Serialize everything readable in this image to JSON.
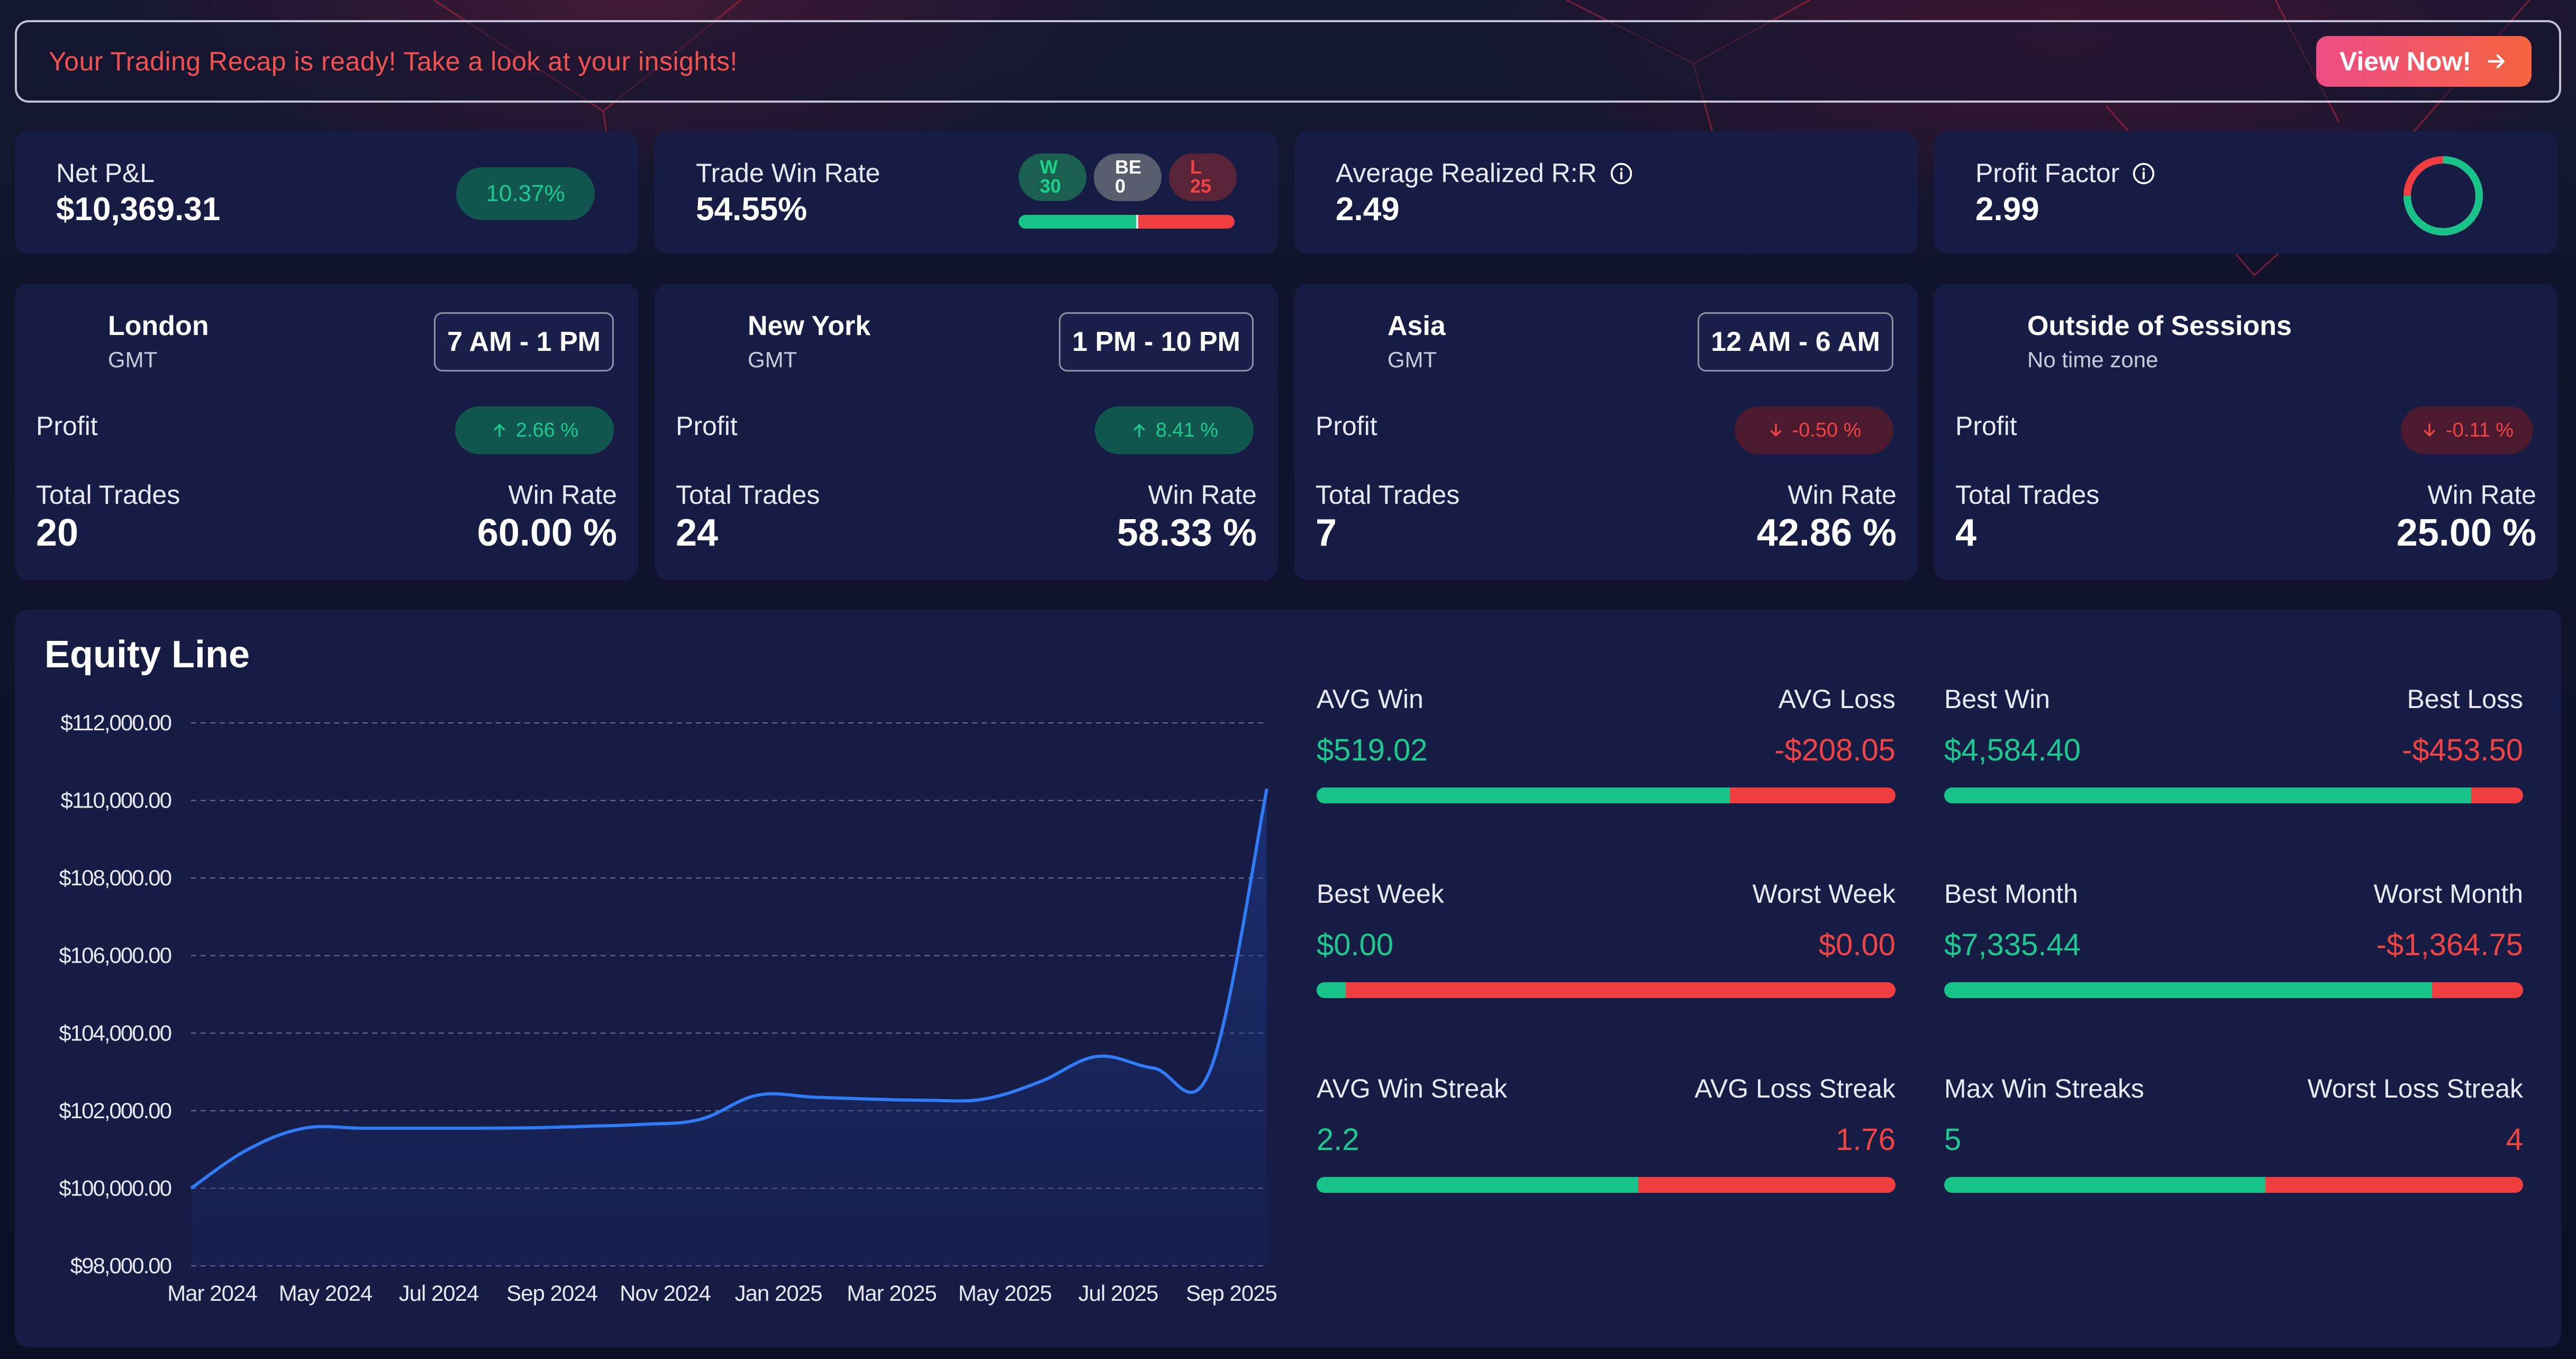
{
  "banner": {
    "text": "Your Trading Recap is ready! Take a look at your insights!",
    "button_label": "View Now!"
  },
  "summary": {
    "net_pnl": {
      "label": "Net P&L",
      "value": "$10,369.31",
      "badge": "10.37%"
    },
    "trade_win_rate": {
      "label": "Trade Win Rate",
      "value": "54.55%",
      "wins_label": "W",
      "wins": "30",
      "breakeven_label": "BE",
      "breakeven": "0",
      "losses_label": "L",
      "losses": "25",
      "win_share": 0.545,
      "be_share": 0.01,
      "loss_share": 0.445
    },
    "avg_rr": {
      "label": "Average Realized R:R",
      "value": "2.49"
    },
    "profit_factor": {
      "label": "Profit Factor",
      "value": "2.99",
      "ring_share": 0.75
    }
  },
  "sessions": [
    {
      "name": "London",
      "timezone": "GMT",
      "time": "7 AM - 1 PM",
      "profit_label": "Profit",
      "profit": "2.66 %",
      "direction": "up",
      "total_trades_label": "Total Trades",
      "total_trades": "20",
      "win_rate_label": "Win Rate",
      "win_rate": "60.00 %"
    },
    {
      "name": "New York",
      "timezone": "GMT",
      "time": "1 PM - 10 PM",
      "profit_label": "Profit",
      "profit": "8.41 %",
      "direction": "up",
      "total_trades_label": "Total Trades",
      "total_trades": "24",
      "win_rate_label": "Win Rate",
      "win_rate": "58.33 %"
    },
    {
      "name": "Asia",
      "timezone": "GMT",
      "time": "12 AM - 6 AM",
      "profit_label": "Profit",
      "profit": "-0.50 %",
      "direction": "down",
      "total_trades_label": "Total Trades",
      "total_trades": "7",
      "win_rate_label": "Win Rate",
      "win_rate": "42.86 %"
    },
    {
      "name": "Outside of Sessions",
      "timezone": "No time zone",
      "time": "",
      "profit_label": "Profit",
      "profit": "-0.11 %",
      "direction": "down",
      "total_trades_label": "Total Trades",
      "total_trades": "4",
      "win_rate_label": "Win Rate",
      "win_rate": "25.00 %"
    }
  ],
  "equity": {
    "title": "Equity Line"
  },
  "stats": [
    {
      "left_label": "AVG Win",
      "left_value": "$519.02",
      "right_label": "AVG Loss",
      "right_value": "-$208.05",
      "green_share": 0.714
    },
    {
      "left_label": "Best Win",
      "left_value": "$4,584.40",
      "right_label": "Best Loss",
      "right_value": "-$453.50",
      "green_share": 0.91
    },
    {
      "left_label": "Best Week",
      "left_value": "$0.00",
      "right_label": "Worst Week",
      "right_value": "$0.00",
      "green_share": 0.05
    },
    {
      "left_label": "Best Month",
      "left_value": "$7,335.44",
      "right_label": "Worst Month",
      "right_value": "-$1,364.75",
      "green_share": 0.843
    },
    {
      "left_label": "AVG Win Streak",
      "left_value": "2.2",
      "right_label": "AVG Loss Streak",
      "right_value": "1.76",
      "green_share": 0.556
    },
    {
      "left_label": "Max Win Streaks",
      "left_value": "5",
      "right_label": "Worst Loss Streak",
      "right_value": "4",
      "green_share": 0.555
    }
  ],
  "colors": {
    "green": "#19c48b",
    "red": "#ef3d40",
    "line": "#2f7cf6",
    "card": "#161c44",
    "badge_green_bg": "#12574f"
  },
  "chart_data": {
    "type": "area",
    "title": "Equity Line",
    "x": [
      "Mar 2024",
      "Apr 2024",
      "May 2024",
      "Jun 2024",
      "Jul 2024",
      "Aug 2024",
      "Sep 2024",
      "Oct 2024",
      "Nov 2024",
      "Dec 2024",
      "Jan 2025",
      "Feb 2025",
      "Mar 2025",
      "Apr 2025",
      "May 2025",
      "Jun 2025",
      "Jul 2025",
      "Aug 2025",
      "Sep 2025",
      "Oct 2025"
    ],
    "x_ticks": [
      "Mar 2024",
      "May 2024",
      "Jul 2024",
      "Sep 2024",
      "Nov 2024",
      "Jan 2025",
      "Mar 2025",
      "May 2025",
      "Jul 2025",
      "Sep 2025"
    ],
    "y_ticks": [
      "$98,000.00",
      "$100,000.00",
      "$102,000.00",
      "$104,000.00",
      "$106,000.00",
      "$108,000.00",
      "$110,000.00",
      "$112,000.00"
    ],
    "series": [
      {
        "values": [
          100000,
          101000,
          101550,
          101550,
          101550,
          101550,
          101560,
          101600,
          101650,
          101780,
          102400,
          102350,
          102300,
          102270,
          102300,
          102750,
          103400,
          103100,
          103050,
          110300
        ]
      }
    ],
    "ylim": [
      98000,
      112000
    ],
    "grid": true
  }
}
